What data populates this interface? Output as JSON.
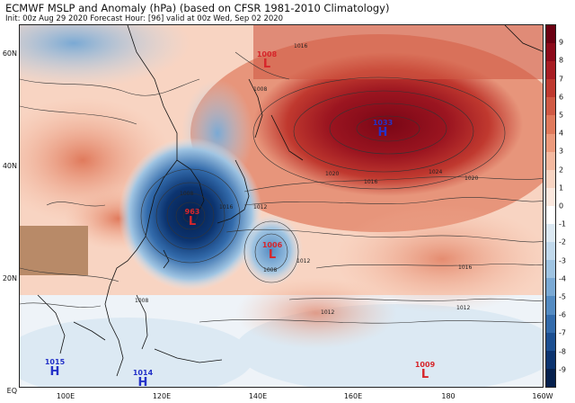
{
  "header": {
    "title": "ECMWF MSLP and Anomaly (hPa) (based on CFSR 1981-2010 Climatology)",
    "subtitle": "Init: 00z Aug 29 2020   Forecast Hour: [96]   valid at 00z Wed, Sep 02 2020"
  },
  "axes": {
    "lat_labels": [
      "60N",
      "40N",
      "20N",
      "EQ"
    ],
    "lon_labels": [
      "100E",
      "120E",
      "140E",
      "160E",
      "180",
      "160W"
    ]
  },
  "colorbar": {
    "labels": [
      "9",
      "8",
      "7",
      "6",
      "5",
      "4",
      "3",
      "2",
      "1",
      "0",
      "-1",
      "-2",
      "-3",
      "-4",
      "-5",
      "-6",
      "-7",
      "-8",
      "-9"
    ],
    "colors": [
      "#6b0012",
      "#8c0a1a",
      "#a81d23",
      "#bf3a30",
      "#d05a44",
      "#e07a5c",
      "#ec9a7c",
      "#f4b9a0",
      "#f8d4c2",
      "#fbe8de",
      "#ffffff",
      "#dce9f3",
      "#c1d9ec",
      "#9fc4e2",
      "#7aa9d4",
      "#548bc2",
      "#336bab",
      "#1c4f91",
      "#0c3470",
      "#06204d"
    ]
  },
  "pressure_centers": [
    {
      "value": "1008",
      "symbol": "L",
      "kind": "low",
      "color": "#d6262b"
    },
    {
      "value": "1033",
      "symbol": "H",
      "kind": "high",
      "color": "#2432c8"
    },
    {
      "value": "963",
      "symbol": "L",
      "kind": "low",
      "color": "#d6262b"
    },
    {
      "value": "1006",
      "symbol": "L",
      "kind": "low",
      "color": "#d6262b"
    },
    {
      "value": "1015",
      "symbol": "H",
      "kind": "high",
      "color": "#2432c8"
    },
    {
      "value": "1014",
      "symbol": "H",
      "kind": "high",
      "color": "#2432c8"
    },
    {
      "value": "1009",
      "symbol": "L",
      "kind": "low",
      "color": "#d6262b"
    }
  ],
  "isobar_labels": [
    "1016",
    "1008",
    "1008",
    "1020",
    "1024",
    "1020",
    "1012",
    "1016",
    "1012",
    "1016",
    "1008",
    "1012",
    "1016",
    "1012",
    "1008"
  ]
}
